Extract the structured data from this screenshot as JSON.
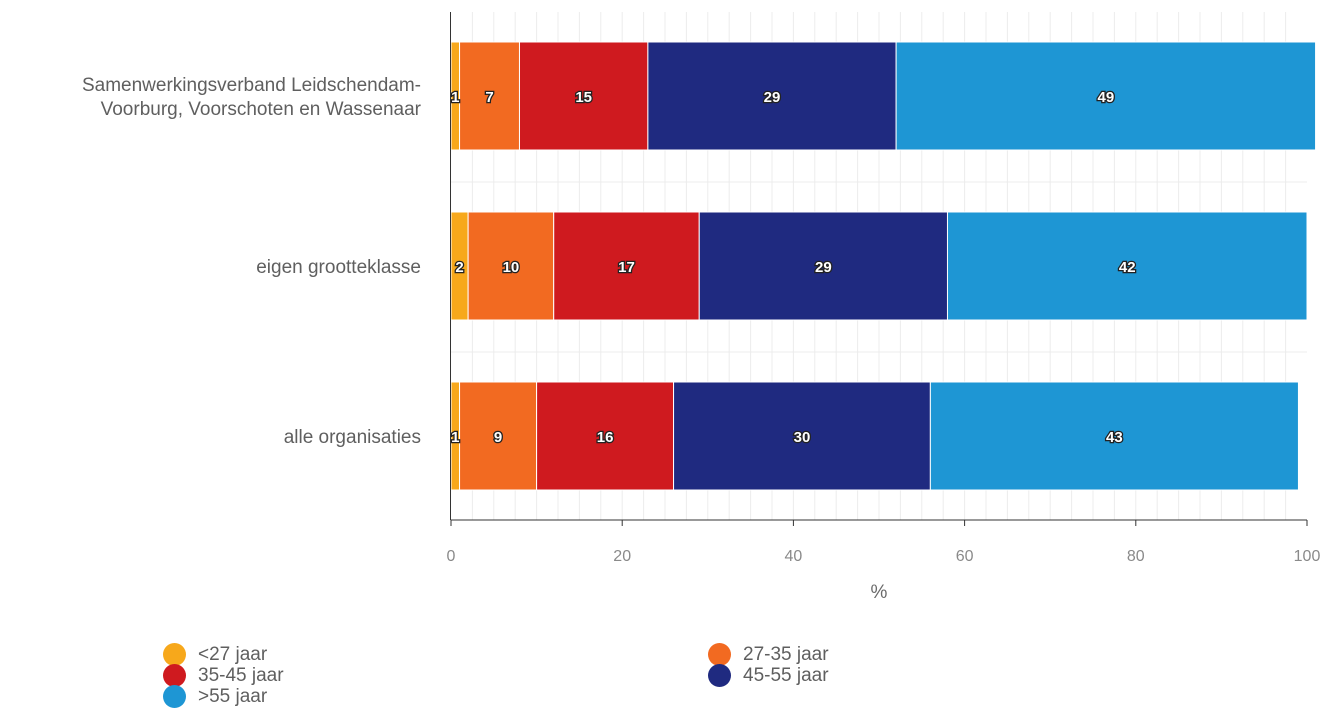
{
  "chart_data": {
    "type": "bar",
    "orientation": "horizontal",
    "stacked": true,
    "categories": [
      "Samenwerkingsverband Leidschendam-Voorburg, Voorschoten en Wassenaar",
      "eigen grootteklasse",
      "alle organisaties"
    ],
    "category_lines": [
      [
        "Samenwerkingsverband Leidschendam-",
        "Voorburg, Voorschoten en Wassenaar"
      ],
      [
        "eigen grootteklasse"
      ],
      [
        "alle organisaties"
      ]
    ],
    "series": [
      {
        "name": "<27 jaar",
        "color": "#f7a81b",
        "values": [
          1,
          2,
          1
        ]
      },
      {
        "name": "27-35 jaar",
        "color": "#f26a21",
        "values": [
          7,
          10,
          9
        ]
      },
      {
        "name": "35-45 jaar",
        "color": "#cf1a1f",
        "values": [
          15,
          17,
          16
        ]
      },
      {
        "name": "45-55 jaar",
        "color": "#1f2a80",
        "values": [
          29,
          29,
          30
        ]
      },
      {
        "name": ">55 jaar",
        "color": "#1e96d4",
        "values": [
          49,
          42,
          43
        ]
      }
    ],
    "xlabel": "%",
    "xlim": [
      0,
      100
    ],
    "xticks": [
      0,
      20,
      40,
      60,
      80,
      100
    ],
    "grid": true,
    "legend_position": "bottom"
  }
}
